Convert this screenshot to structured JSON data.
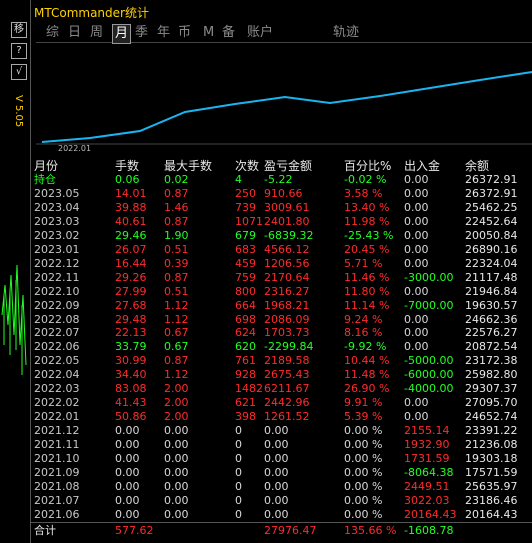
{
  "title": "MTCommander统计",
  "version": "V 5.05",
  "side_buttons": [
    "移",
    "?",
    "√"
  ],
  "tabs": [
    "综",
    "日",
    "周",
    "月",
    "季",
    "年",
    "币",
    "M",
    "备",
    "账户",
    "轨迹"
  ],
  "active_tab": 3,
  "chart_label": "2022.01",
  "table": {
    "header": [
      "月份",
      "手数",
      "最大手数",
      "次数",
      "盈亏金额",
      "百分比%",
      "出入金",
      "余额"
    ],
    "rows": [
      [
        "持仓",
        "0.06",
        "0.02",
        "4",
        "-5.22",
        "-0.02 %",
        "0.00",
        "26372.91"
      ],
      [
        "2023.05",
        "14.01",
        "0.87",
        "250",
        "910.66",
        "3.58 %",
        "0.00",
        "26372.91"
      ],
      [
        "2023.04",
        "39.88",
        "1.46",
        "739",
        "3009.61",
        "13.40 %",
        "0.00",
        "25462.25"
      ],
      [
        "2023.03",
        "40.61",
        "0.87",
        "1071",
        "2401.80",
        "11.98 %",
        "0.00",
        "22452.64"
      ],
      [
        "2023.02",
        "29.46",
        "1.90",
        "679",
        "-6839.32",
        "-25.43 %",
        "0.00",
        "20050.84"
      ],
      [
        "2023.01",
        "26.07",
        "0.51",
        "683",
        "4566.12",
        "20.45 %",
        "0.00",
        "26890.16"
      ],
      [
        "2022.12",
        "16.44",
        "0.39",
        "459",
        "1206.56",
        "5.71 %",
        "0.00",
        "22324.04"
      ],
      [
        "2022.11",
        "29.26",
        "0.87",
        "759",
        "2170.64",
        "11.46 %",
        "-3000.00",
        "21117.48"
      ],
      [
        "2022.10",
        "27.99",
        "0.51",
        "800",
        "2316.27",
        "11.80 %",
        "0.00",
        "21946.84"
      ],
      [
        "2022.09",
        "27.68",
        "1.12",
        "664",
        "1968.21",
        "11.14 %",
        "-7000.00",
        "19630.57"
      ],
      [
        "2022.08",
        "29.48",
        "1.12",
        "698",
        "2086.09",
        "9.24 %",
        "0.00",
        "24662.36"
      ],
      [
        "2022.07",
        "22.13",
        "0.67",
        "624",
        "1703.73",
        "8.16 %",
        "0.00",
        "22576.27"
      ],
      [
        "2022.06",
        "33.79",
        "0.67",
        "620",
        "-2299.84",
        "-9.92 %",
        "0.00",
        "20872.54"
      ],
      [
        "2022.05",
        "30.99",
        "0.87",
        "761",
        "2189.58",
        "10.44 %",
        "-5000.00",
        "23172.38"
      ],
      [
        "2022.04",
        "34.40",
        "1.12",
        "928",
        "2675.43",
        "11.48 %",
        "-6000.00",
        "25982.80"
      ],
      [
        "2022.03",
        "83.08",
        "2.00",
        "1482",
        "6211.67",
        "26.90 %",
        "-4000.00",
        "29307.37"
      ],
      [
        "2022.02",
        "41.43",
        "2.00",
        "621",
        "2442.96",
        "9.91 %",
        "0.00",
        "27095.70"
      ],
      [
        "2022.01",
        "50.86",
        "2.00",
        "398",
        "1261.52",
        "5.39 %",
        "0.00",
        "24652.74"
      ],
      [
        "2021.12",
        "0.00",
        "0.00",
        "0",
        "0.00",
        "0.00 %",
        "2155.14",
        "23391.22"
      ],
      [
        "2021.11",
        "0.00",
        "0.00",
        "0",
        "0.00",
        "0.00 %",
        "1932.90",
        "21236.08"
      ],
      [
        "2021.10",
        "0.00",
        "0.00",
        "0",
        "0.00",
        "0.00 %",
        "1731.59",
        "19303.18"
      ],
      [
        "2021.09",
        "0.00",
        "0.00",
        "0",
        "0.00",
        "0.00 %",
        "-8064.38",
        "17571.59"
      ],
      [
        "2021.08",
        "0.00",
        "0.00",
        "0",
        "0.00",
        "0.00 %",
        "2449.51",
        "25635.97"
      ],
      [
        "2021.07",
        "0.00",
        "0.00",
        "0",
        "0.00",
        "0.00 %",
        "3022.03",
        "23186.46"
      ],
      [
        "2021.06",
        "0.00",
        "0.00",
        "0",
        "0.00",
        "0.00 %",
        "20164.43",
        "20164.43"
      ]
    ],
    "total": [
      "合计",
      "577.62",
      null,
      null,
      "27976.47",
      "135.66 %",
      "-1608.78",
      null
    ]
  }
}
